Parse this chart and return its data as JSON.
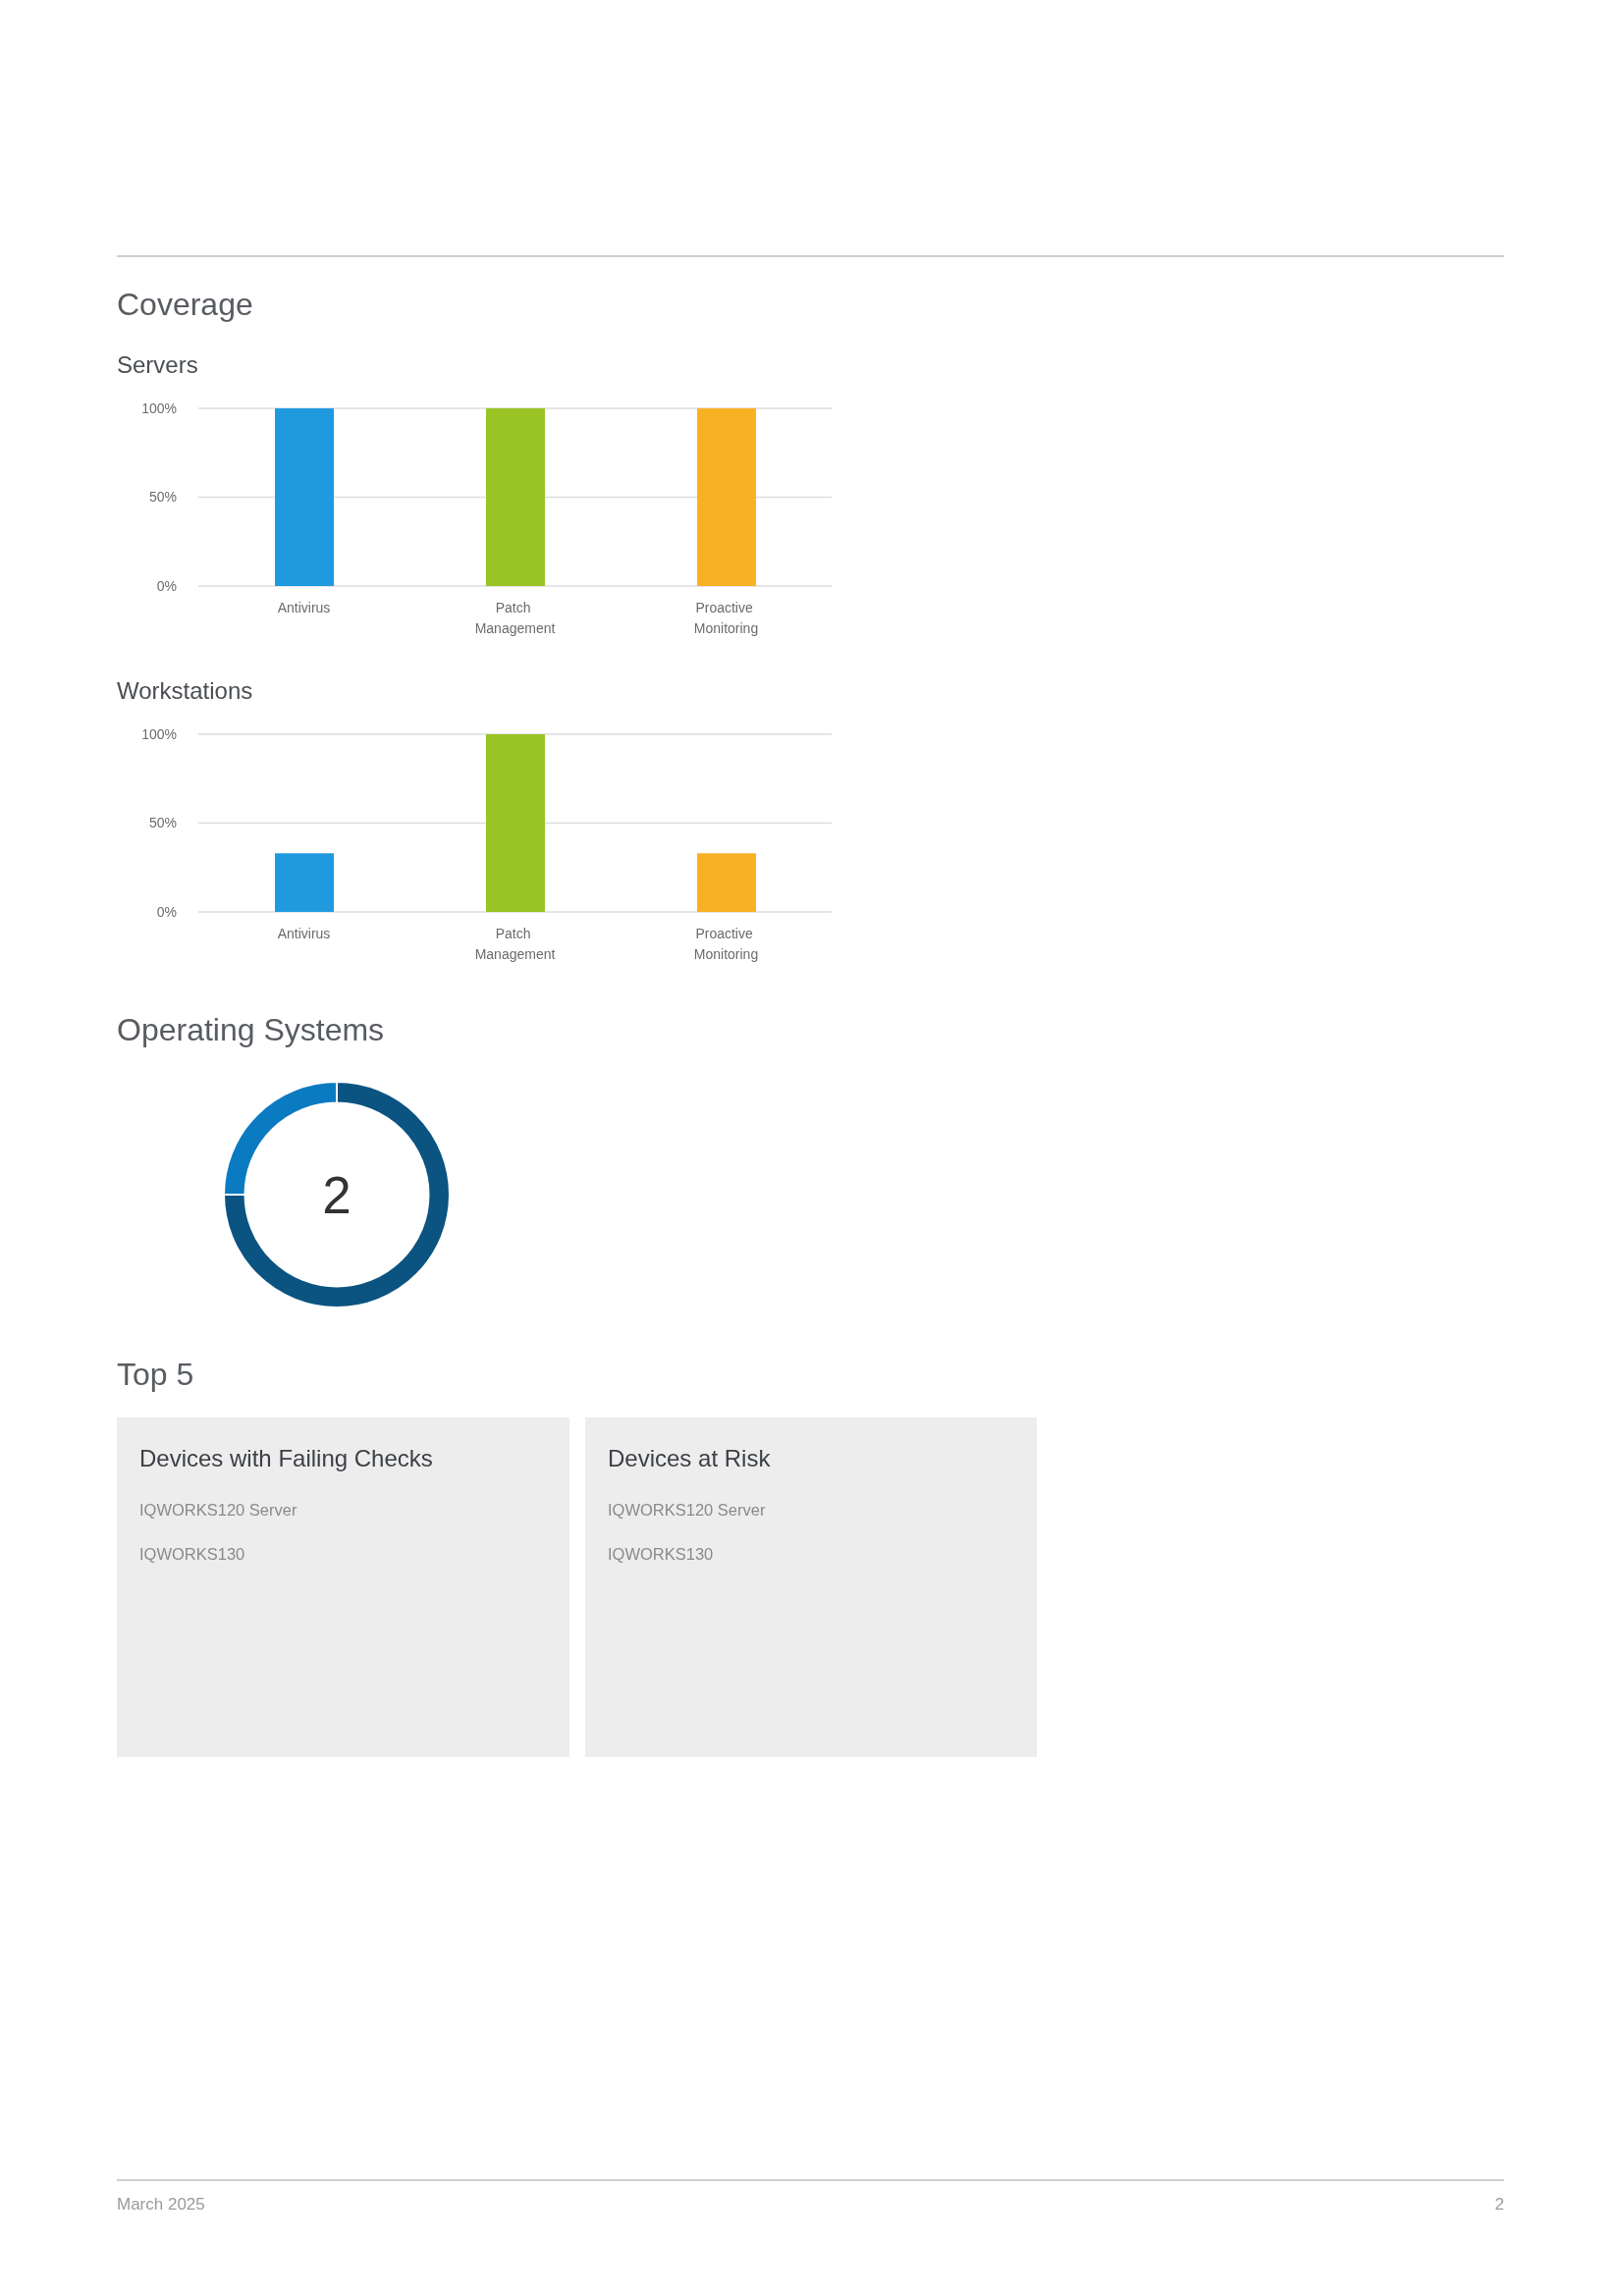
{
  "chart_data": [
    {
      "type": "bar",
      "title": "Coverage",
      "subtitle": "Servers",
      "categories": [
        "Antivirus",
        "Patch Management",
        "Proactive Monitoring"
      ],
      "values": [
        100,
        100,
        100
      ],
      "colors": [
        "#209adf",
        "#9ac325",
        "#f9b124"
      ],
      "ylim": [
        0,
        100
      ],
      "yticks": [
        {
          "value": 0,
          "label": "0%"
        },
        {
          "value": 50,
          "label": "50%"
        },
        {
          "value": 100,
          "label": "100%"
        }
      ],
      "grid": "y"
    },
    {
      "type": "bar",
      "subtitle": "Workstations",
      "categories": [
        "Antivirus",
        "Patch Management",
        "Proactive Monitoring"
      ],
      "values": [
        33,
        100,
        33
      ],
      "colors": [
        "#209adf",
        "#9ac325",
        "#f9b124"
      ],
      "ylim": [
        0,
        100
      ],
      "yticks": [
        {
          "value": 0,
          "label": "0%"
        },
        {
          "value": 50,
          "label": "50%"
        },
        {
          "value": 100,
          "label": "100%"
        }
      ],
      "grid": "y"
    },
    {
      "type": "donut",
      "title": "Operating Systems",
      "categories": [
        null,
        null
      ],
      "values": [
        75,
        25
      ],
      "colors": [
        "#0b5380",
        "#0a7bc1"
      ],
      "annotations": [
        "2"
      ]
    },
    {
      "type": "other",
      "title": "Top 5",
      "subtitle": "Devices with Failing Checks",
      "annotations": [
        "IQWORKS120 Server",
        "IQWORKS130"
      ]
    },
    {
      "type": "other",
      "subtitle": "Devices at Risk",
      "annotations": [
        "IQWORKS120 Server",
        "IQWORKS130"
      ]
    },
    {
      "type": "other",
      "annotations": [
        "March 2025",
        "2"
      ]
    }
  ]
}
